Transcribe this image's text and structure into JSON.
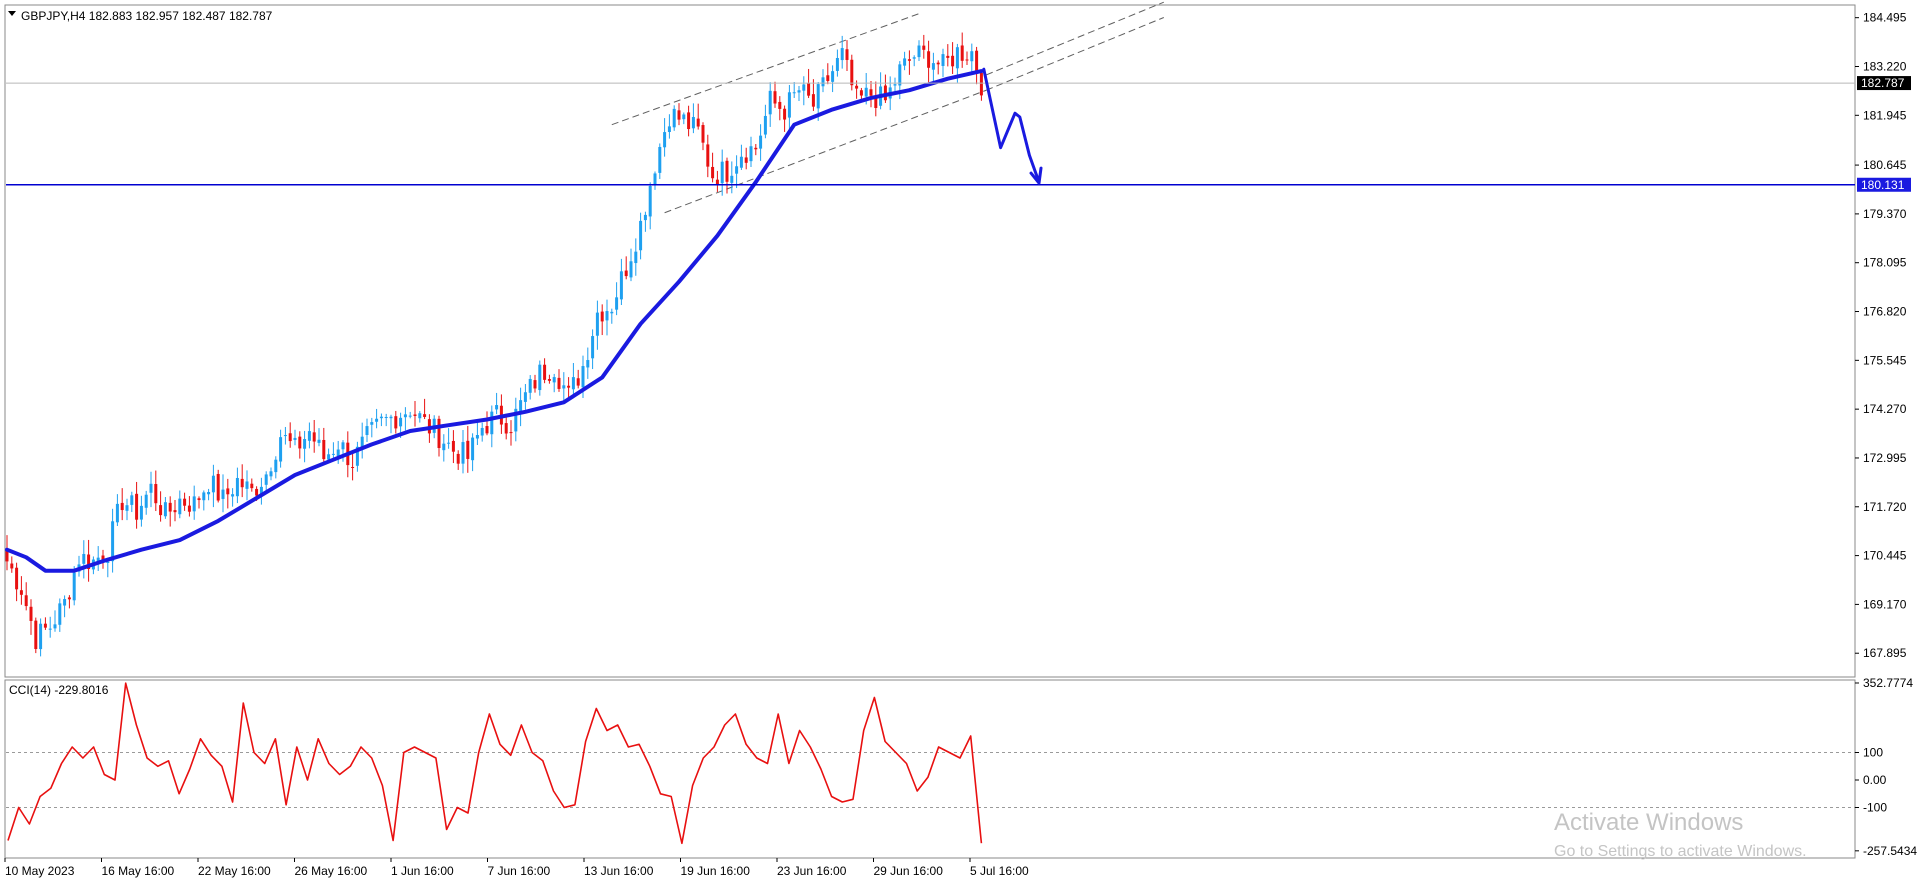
{
  "symbol_header": "GBPJPY,H4  182.883 182.957 182.487 182.787",
  "watermark": {
    "line1": "Activate Windows",
    "line2": "Go to Settings to activate Windows."
  },
  "chart_data": [
    {
      "type": "candlestick",
      "title": "GBPJPY,H4  182.883 182.957 182.487 182.787",
      "ohlc_last": {
        "open": 182.883,
        "high": 182.957,
        "low": 182.487,
        "close": 182.787
      },
      "ylim": [
        167.3,
        184.8
      ],
      "y_ticks": [
        184.495,
        183.22,
        181.945,
        180.645,
        179.37,
        178.095,
        176.82,
        175.545,
        174.27,
        172.995,
        171.72,
        170.445,
        169.17,
        167.895
      ],
      "y_tick_labels": [
        "184.495",
        "183.220",
        "181.945",
        "180.645",
        "179.370",
        "178.095",
        "176.820",
        "175.545",
        "174.270",
        "172.995",
        "171.720",
        "170.445",
        "169.170",
        "167.895"
      ],
      "x_tick_labels": [
        "10 May 2023",
        "16 May 16:00",
        "22 May 16:00",
        "26 May 16:00",
        "1 Jun 16:00",
        "7 Jun 16:00",
        "13 Jun 16:00",
        "19 Jun 16:00",
        "23 Jun 16:00",
        "29 Jun 16:00",
        "5 Jul 16:00"
      ],
      "current_price_label": "182.787",
      "current_price": 182.787,
      "support_level_label": "180.131",
      "support_level": 180.131,
      "colors": {
        "bull": "#1EA0F0",
        "bear": "#E81010",
        "ma": "#1A1AE0",
        "level": "#0000D0",
        "price_tag": "#000000",
        "level_tag": "#1A1AE0",
        "projection": "#1A1AE0",
        "channel": "#606060"
      },
      "close_path": [
        [
          0,
          170.3
        ],
        [
          3,
          169.6
        ],
        [
          6,
          168.3
        ],
        [
          9,
          168.6
        ],
        [
          12,
          169.2
        ],
        [
          15,
          170.4
        ],
        [
          18,
          170.3
        ],
        [
          21,
          170.6
        ],
        [
          24,
          171.9
        ],
        [
          27,
          171.6
        ],
        [
          30,
          172.2
        ],
        [
          33,
          171.5
        ],
        [
          36,
          171.9
        ],
        [
          39,
          171.8
        ],
        [
          42,
          172.4
        ],
        [
          45,
          171.9
        ],
        [
          48,
          172.4
        ],
        [
          51,
          172.1
        ],
        [
          54,
          172.6
        ],
        [
          57,
          173.6
        ],
        [
          60,
          173.2
        ],
        [
          63,
          173.7
        ],
        [
          66,
          173.0
        ],
        [
          69,
          173.4
        ],
        [
          72,
          172.9
        ],
        [
          75,
          173.5
        ],
        [
          78,
          173.9
        ],
        [
          81,
          174.1
        ],
        [
          84,
          174.3
        ],
        [
          87,
          173.9
        ],
        [
          90,
          173.6
        ],
        [
          93,
          173.2
        ],
        [
          96,
          173.0
        ],
        [
          99,
          173.8
        ],
        [
          102,
          174.1
        ],
        [
          105,
          173.9
        ],
        [
          108,
          174.6
        ],
        [
          111,
          175.2
        ],
        [
          114,
          175.4
        ],
        [
          117,
          174.6
        ],
        [
          120,
          175.4
        ],
        [
          123,
          176.8
        ],
        [
          126,
          177.0
        ],
        [
          129,
          178.0
        ],
        [
          132,
          179.1
        ],
        [
          135,
          180.7
        ],
        [
          138,
          182.0
        ],
        [
          141,
          181.8
        ],
        [
          144,
          181.5
        ],
        [
          147,
          180.4
        ],
        [
          150,
          180.5
        ],
        [
          153,
          181.0
        ],
        [
          156,
          181.1
        ],
        [
          159,
          182.3
        ],
        [
          162,
          182.1
        ],
        [
          165,
          182.6
        ],
        [
          168,
          182.2
        ],
        [
          171,
          182.9
        ],
        [
          174,
          183.5
        ],
        [
          177,
          182.3
        ],
        [
          180,
          182.5
        ],
        [
          183,
          182.3
        ],
        [
          186,
          183.1
        ],
        [
          189,
          183.5
        ],
        [
          192,
          183.5
        ],
        [
          195,
          183.2
        ],
        [
          198,
          183.6
        ],
        [
          201,
          183.6
        ],
        [
          203,
          182.8
        ]
      ],
      "ma_path": [
        [
          0,
          170.6
        ],
        [
          4,
          170.4
        ],
        [
          8,
          170.05
        ],
        [
          14,
          170.05
        ],
        [
          20,
          170.3
        ],
        [
          28,
          170.6
        ],
        [
          36,
          170.85
        ],
        [
          44,
          171.35
        ],
        [
          52,
          171.95
        ],
        [
          60,
          172.55
        ],
        [
          68,
          172.95
        ],
        [
          76,
          173.35
        ],
        [
          84,
          173.7
        ],
        [
          92,
          173.85
        ],
        [
          100,
          174.0
        ],
        [
          108,
          174.2
        ],
        [
          116,
          174.45
        ],
        [
          124,
          175.1
        ],
        [
          132,
          176.5
        ],
        [
          140,
          177.6
        ],
        [
          148,
          178.8
        ],
        [
          156,
          180.2
        ],
        [
          164,
          181.7
        ],
        [
          172,
          182.1
        ],
        [
          180,
          182.4
        ],
        [
          188,
          182.6
        ],
        [
          196,
          182.9
        ],
        [
          203,
          183.1
        ]
      ],
      "projection_path": [
        [
          203.5,
          183.15
        ],
        [
          207,
          181.1
        ],
        [
          210,
          182.0
        ],
        [
          211,
          181.9
        ],
        [
          213,
          180.9
        ],
        [
          215,
          180.2
        ]
      ],
      "channel_lines": [
        {
          "from": [
            126,
            181.7
          ],
          "to": [
            190,
            184.6
          ]
        },
        {
          "from": [
            137,
            179.4
          ],
          "to": [
            204,
            182.6
          ]
        },
        {
          "from": [
            204,
            183.0
          ],
          "to": [
            241,
            184.9
          ]
        },
        {
          "from": [
            204,
            182.6
          ],
          "to": [
            241,
            184.5
          ]
        }
      ]
    },
    {
      "type": "line",
      "title": "CCI(14) -229.8016",
      "ylim": [
        -280,
        360
      ],
      "y_ticks": [
        352.7774,
        100,
        0,
        -100,
        -257.5434
      ],
      "y_tick_labels": [
        "352.7774",
        "100",
        "0.00",
        "-100",
        "-257.5434"
      ],
      "reference_levels": [
        100,
        0,
        -100
      ],
      "colors": {
        "line": "#E81010",
        "reference": "#9A9A9A"
      },
      "series": [
        {
          "values": [
            -220,
            -100,
            -160,
            -60,
            -30,
            60,
            120,
            80,
            120,
            20,
            0,
            352,
            200,
            80,
            50,
            70,
            -50,
            40,
            150,
            90,
            50,
            -80,
            280,
            100,
            60,
            150,
            -90,
            120,
            0,
            150,
            60,
            20,
            50,
            120,
            80,
            -20,
            -220,
            100,
            120,
            100,
            80,
            -180,
            -100,
            -120,
            100,
            240,
            130,
            90,
            200,
            100,
            70,
            -40,
            -100,
            -90,
            140,
            260,
            180,
            200,
            120,
            130,
            50,
            -50,
            -60,
            -230,
            -20,
            80,
            120,
            200,
            240,
            130,
            80,
            60,
            240,
            60,
            180,
            120,
            40,
            -60,
            -80,
            -70,
            180,
            300,
            140,
            100,
            60,
            -40,
            10,
            120,
            100,
            80,
            160,
            -229.8
          ]
        }
      ]
    }
  ]
}
